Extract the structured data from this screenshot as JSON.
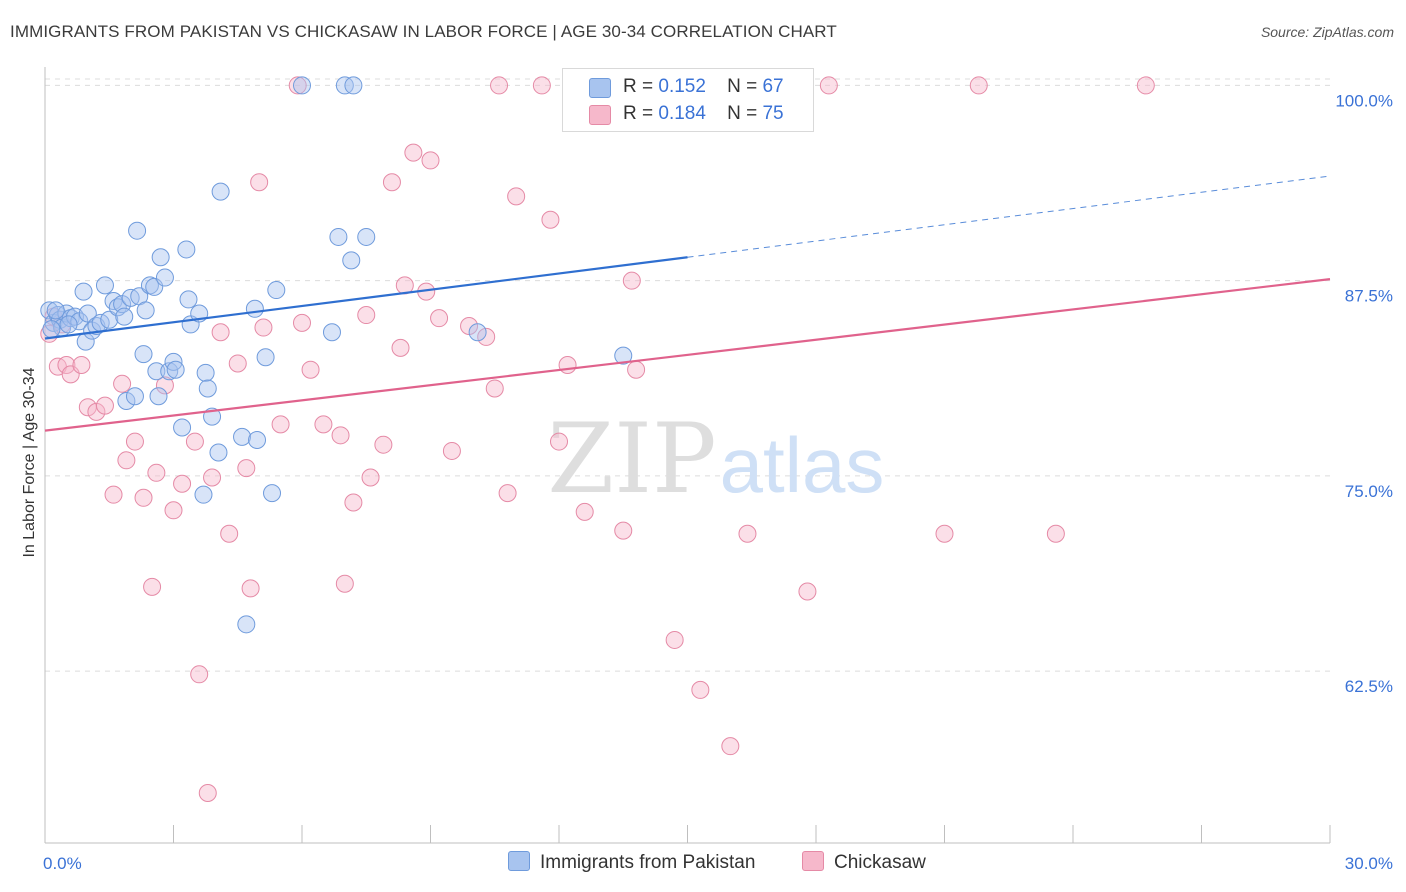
{
  "title": "IMMIGRANTS FROM PAKISTAN VS CHICKASAW IN LABOR FORCE | AGE 30-34 CORRELATION CHART",
  "source": "Source: ZipAtlas.com",
  "watermark": {
    "zip": "ZIP",
    "atlas": "atlas"
  },
  "legend": {
    "series1": {
      "r_label": "R =",
      "r_value": "0.152",
      "n_label": "N =",
      "n_value": "67"
    },
    "series2": {
      "r_label": "R =",
      "r_value": "0.184",
      "n_label": "N =",
      "n_value": "75"
    }
  },
  "bottom_legend": {
    "series1": "Immigrants from Pakistan",
    "series2": "Chickasaw"
  },
  "colors": {
    "blue_fill": "#a8c4ef",
    "blue_stroke": "#6f9bdc",
    "blue_line": "#2f6fd0",
    "pink_fill": "#f6b8cb",
    "pink_stroke": "#e58aa6",
    "pink_line": "#e0628c",
    "axis_text": "#3a72d6",
    "grid": "#dcdcdc"
  },
  "chart_data": {
    "type": "scatter",
    "title": "IMMIGRANTS FROM PAKISTAN VS CHICKASAW IN LABOR FORCE | AGE 30-34 CORRELATION CHART",
    "xlabel": "",
    "ylabel": "In Labor Force | Age 30-34",
    "xlim": [
      0,
      30
    ],
    "ylim": [
      51.5,
      101.5
    ],
    "x_tick_labels": [
      "0.0%",
      "30.0%"
    ],
    "y_ticks": [
      62.5,
      75.0,
      87.5,
      100.0
    ],
    "y_tick_labels": [
      "62.5%",
      "75.0%",
      "87.5%",
      "100.0%"
    ],
    "series": [
      {
        "name": "Immigrants from Pakistan",
        "color": "#6f9bdc",
        "trend": {
          "x0": 0,
          "y0": 83.8,
          "x1": 15,
          "y1": 89.0,
          "dash_x1": 30,
          "dash_y1": 94.2
        },
        "points": [
          [
            0.1,
            85.6
          ],
          [
            0.2,
            84.8
          ],
          [
            0.3,
            85.3
          ],
          [
            0.35,
            85.0
          ],
          [
            0.4,
            84.5
          ],
          [
            0.5,
            85.4
          ],
          [
            0.6,
            85.1
          ],
          [
            0.7,
            85.2
          ],
          [
            0.8,
            84.9
          ],
          [
            0.9,
            86.8
          ],
          [
            0.95,
            83.6
          ],
          [
            1.0,
            85.4
          ],
          [
            1.1,
            84.3
          ],
          [
            1.2,
            84.6
          ],
          [
            1.3,
            84.8
          ],
          [
            1.4,
            87.2
          ],
          [
            1.5,
            85.0
          ],
          [
            1.6,
            86.2
          ],
          [
            1.7,
            85.8
          ],
          [
            1.8,
            86.0
          ],
          [
            1.85,
            85.2
          ],
          [
            1.9,
            79.8
          ],
          [
            2.0,
            86.4
          ],
          [
            2.1,
            80.1
          ],
          [
            2.15,
            90.7
          ],
          [
            2.2,
            86.5
          ],
          [
            2.3,
            82.8
          ],
          [
            2.35,
            85.6
          ],
          [
            2.45,
            87.2
          ],
          [
            2.55,
            87.1
          ],
          [
            2.6,
            81.7
          ],
          [
            2.65,
            80.1
          ],
          [
            2.7,
            89.0
          ],
          [
            2.8,
            87.7
          ],
          [
            2.9,
            81.7
          ],
          [
            3.0,
            82.3
          ],
          [
            3.05,
            81.8
          ],
          [
            3.2,
            78.1
          ],
          [
            3.3,
            89.5
          ],
          [
            3.35,
            86.3
          ],
          [
            3.4,
            84.7
          ],
          [
            3.6,
            85.4
          ],
          [
            3.7,
            73.8
          ],
          [
            3.75,
            81.6
          ],
          [
            3.8,
            80.6
          ],
          [
            3.9,
            78.8
          ],
          [
            4.05,
            76.5
          ],
          [
            4.1,
            93.2
          ],
          [
            4.6,
            77.5
          ],
          [
            4.7,
            65.5
          ],
          [
            4.9,
            85.7
          ],
          [
            4.95,
            77.3
          ],
          [
            5.15,
            82.6
          ],
          [
            5.3,
            73.9
          ],
          [
            5.4,
            86.9
          ],
          [
            6.0,
            100.0
          ],
          [
            6.7,
            84.2
          ],
          [
            6.85,
            90.3
          ],
          [
            7.0,
            100.0
          ],
          [
            7.15,
            88.8
          ],
          [
            7.2,
            100.0
          ],
          [
            7.5,
            90.3
          ],
          [
            10.1,
            84.2
          ],
          [
            13.5,
            82.7
          ],
          [
            0.15,
            84.4
          ],
          [
            0.25,
            85.6
          ],
          [
            0.55,
            84.7
          ]
        ]
      },
      {
        "name": "Chickasaw",
        "color": "#e58aa6",
        "trend": {
          "x0": 0,
          "y0": 77.9,
          "x1": 30,
          "y1": 87.6
        },
        "points": [
          [
            0.1,
            84.1
          ],
          [
            0.2,
            85.2
          ],
          [
            0.3,
            82.0
          ],
          [
            0.5,
            82.1
          ],
          [
            0.6,
            81.5
          ],
          [
            0.85,
            82.1
          ],
          [
            1.0,
            79.4
          ],
          [
            1.2,
            79.1
          ],
          [
            1.4,
            79.5
          ],
          [
            1.6,
            73.8
          ],
          [
            1.8,
            80.9
          ],
          [
            1.9,
            76.0
          ],
          [
            2.1,
            77.2
          ],
          [
            2.3,
            73.6
          ],
          [
            2.5,
            67.9
          ],
          [
            2.6,
            75.2
          ],
          [
            2.8,
            80.8
          ],
          [
            3.0,
            72.8
          ],
          [
            3.2,
            74.5
          ],
          [
            3.5,
            77.2
          ],
          [
            3.6,
            62.3
          ],
          [
            3.8,
            54.7
          ],
          [
            3.9,
            74.9
          ],
          [
            4.1,
            84.2
          ],
          [
            4.3,
            71.3
          ],
          [
            4.5,
            82.2
          ],
          [
            4.7,
            75.5
          ],
          [
            4.8,
            67.8
          ],
          [
            5.0,
            93.8
          ],
          [
            5.1,
            84.5
          ],
          [
            5.5,
            78.3
          ],
          [
            5.9,
            100.0
          ],
          [
            6.0,
            84.8
          ],
          [
            6.2,
            81.8
          ],
          [
            6.5,
            78.3
          ],
          [
            6.9,
            77.6
          ],
          [
            7.0,
            68.1
          ],
          [
            7.2,
            73.3
          ],
          [
            7.5,
            85.3
          ],
          [
            7.6,
            74.9
          ],
          [
            7.9,
            77.0
          ],
          [
            8.1,
            93.8
          ],
          [
            8.3,
            83.2
          ],
          [
            8.4,
            87.2
          ],
          [
            8.6,
            95.7
          ],
          [
            8.9,
            86.8
          ],
          [
            9.0,
            95.2
          ],
          [
            9.2,
            85.1
          ],
          [
            9.5,
            76.6
          ],
          [
            9.9,
            84.6
          ],
          [
            10.3,
            83.9
          ],
          [
            10.5,
            80.6
          ],
          [
            10.6,
            100.0
          ],
          [
            10.8,
            73.9
          ],
          [
            11.0,
            92.9
          ],
          [
            11.6,
            100.0
          ],
          [
            11.8,
            91.4
          ],
          [
            12.0,
            77.2
          ],
          [
            12.2,
            82.1
          ],
          [
            12.6,
            72.7
          ],
          [
            13.5,
            71.5
          ],
          [
            13.7,
            87.5
          ],
          [
            13.8,
            81.8
          ],
          [
            14.7,
            64.5
          ],
          [
            15.3,
            61.3
          ],
          [
            16.0,
            57.7
          ],
          [
            16.4,
            71.3
          ],
          [
            17.2,
            100.0
          ],
          [
            17.8,
            67.6
          ],
          [
            18.3,
            100.0
          ],
          [
            21.0,
            71.3
          ],
          [
            21.8,
            100.0
          ],
          [
            23.6,
            71.3
          ],
          [
            25.7,
            100.0
          ],
          [
            0.4,
            84.7
          ]
        ]
      }
    ]
  }
}
